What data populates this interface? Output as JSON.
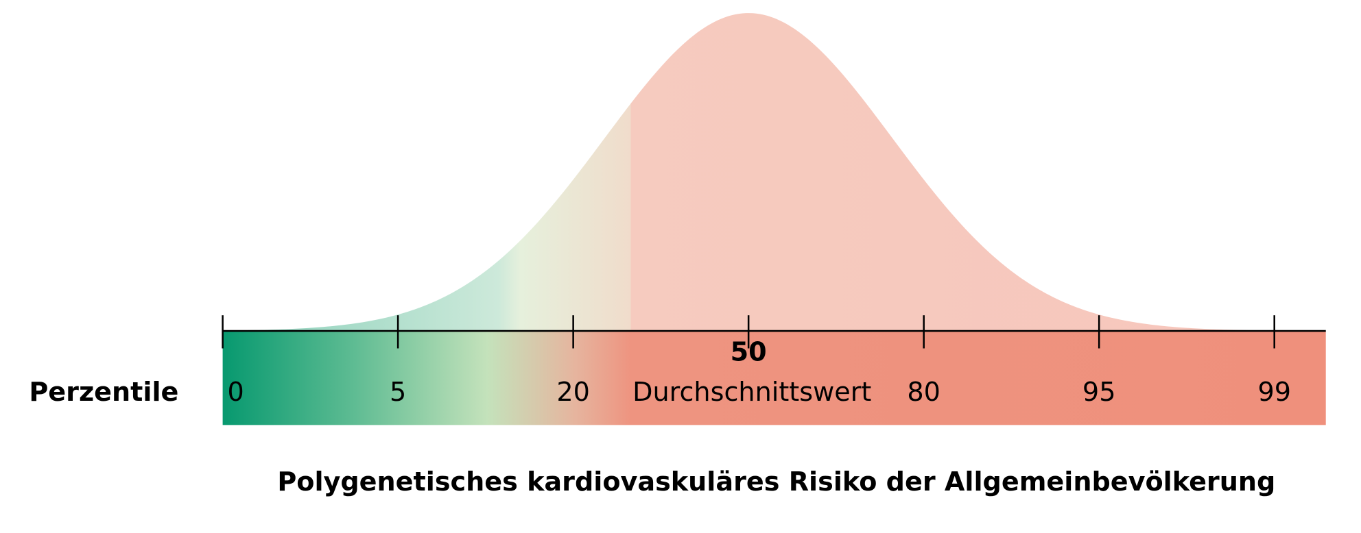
{
  "axis_label": "Perzentile",
  "scale": {
    "ticks": [
      "0",
      "5",
      "20",
      "50",
      "80",
      "95",
      "99"
    ],
    "highlight": "50",
    "center_label": "Durchschnittswert"
  },
  "title": "Polygenetisches kardiovaskuläres Risiko der Allgemeinbevölkerung"
}
